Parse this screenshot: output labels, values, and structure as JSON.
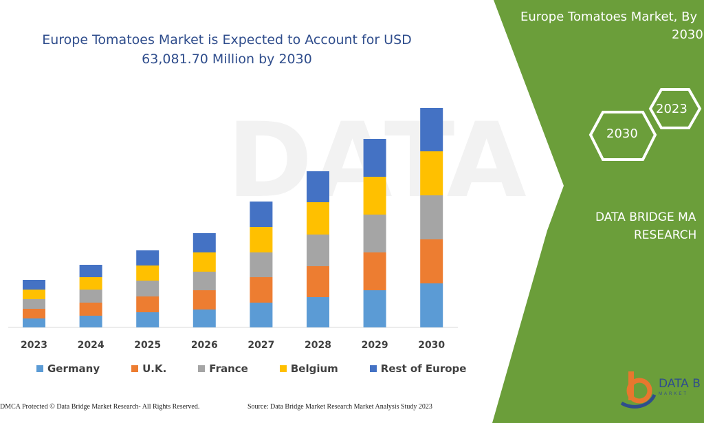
{
  "title": {
    "line1": "Europe Tomatoes Market is Expected to Account for USD",
    "line2": "63,081.70 Million by 2030"
  },
  "side_panel": {
    "title_line1": "Europe Tomatoes Market, By",
    "title_line2": "2030",
    "hexagon_a": "2023",
    "hexagon_b": "2030",
    "brand_line1": "DATA BRIDGE MA",
    "brand_line2": "RESEARCH",
    "logo_text": "DATA B",
    "logo_sub": "MARKET",
    "background_color": "#6b9e3a"
  },
  "footer": {
    "left": "DMCA Protected © Data Bridge Market Research- All Rights Reserved.",
    "right": "Source: Data Bridge Market Research Market Analysis Study 2023"
  },
  "chart_data": {
    "type": "bar",
    "stacked": true,
    "categories": [
      "2023",
      "2024",
      "2025",
      "2026",
      "2027",
      "2028",
      "2029",
      "2030"
    ],
    "series": [
      {
        "name": "Germany",
        "color": "#5b9bd5",
        "values": [
          13,
          17,
          22,
          26,
          36,
          44,
          54,
          64
        ]
      },
      {
        "name": "U.K.",
        "color": "#ed7d31",
        "values": [
          14,
          19,
          23,
          28,
          37,
          45,
          55,
          64
        ]
      },
      {
        "name": "France",
        "color": "#a5a5a5",
        "values": [
          14,
          19,
          23,
          27,
          36,
          46,
          55,
          64
        ]
      },
      {
        "name": "Belgium",
        "color": "#ffc000",
        "values": [
          14,
          18,
          22,
          28,
          37,
          47,
          55,
          64
        ]
      },
      {
        "name": "Rest of Europe",
        "color": "#4472c4",
        "values": [
          14,
          18,
          22,
          28,
          37,
          45,
          55,
          63
        ]
      }
    ],
    "ylim": [
      0,
      330
    ],
    "grid": false,
    "legend": "bottom"
  }
}
